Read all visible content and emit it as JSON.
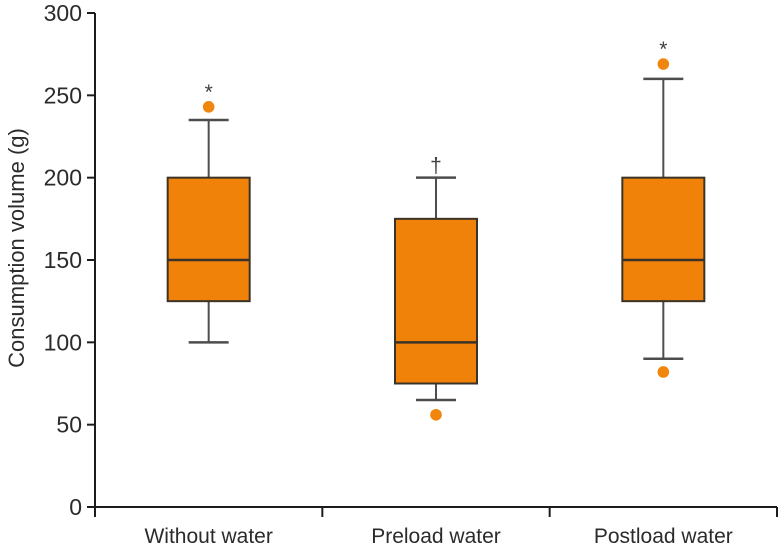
{
  "page": {
    "background": "#FFFFFF"
  },
  "chart_data": {
    "type": "boxplot",
    "title": "",
    "ylabel": "Consumption volume (g)",
    "xlabel": "",
    "ylim": [
      0,
      300
    ],
    "yticks": [
      0,
      50,
      100,
      150,
      200,
      250,
      300
    ],
    "grid": false,
    "legend": false,
    "categories": [
      "Without water",
      "Preload water",
      "Postload water"
    ],
    "series": [
      {
        "category": "Without water",
        "whisker_low": 100,
        "q1": 125,
        "median": 150,
        "q3": 200,
        "whisker_high": 235,
        "outliers": [
          243
        ],
        "annotation": "*"
      },
      {
        "category": "Preload water",
        "whisker_low": 65,
        "q1": 75,
        "median": 100,
        "q3": 175,
        "whisker_high": 200,
        "outliers": [
          56
        ],
        "annotation": "†"
      },
      {
        "category": "Postload water",
        "whisker_low": 90,
        "q1": 125,
        "median": 150,
        "q3": 200,
        "whisker_high": 260,
        "outliers": [
          269,
          82
        ],
        "annotation": "*"
      }
    ],
    "colors": {
      "box_fill": "#F0820A",
      "box_border": "#3C3328",
      "median_line": "#3C3328",
      "whisker": "#4D4D4D",
      "outlier_fill": "#F0860D",
      "axis": "#1C1C1C",
      "tick_text": "#2B2B2B",
      "annotation_text": "#3F3F3F",
      "background": "#FFFFFF"
    }
  }
}
